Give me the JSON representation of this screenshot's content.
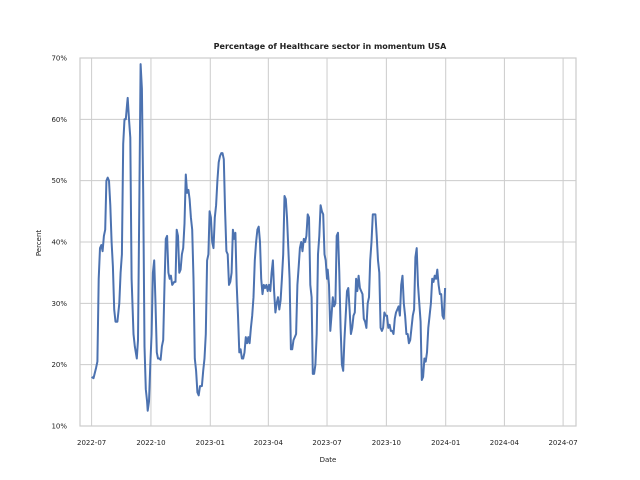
{
  "chart_data": {
    "type": "line",
    "title": "Percentage of Healthcare sector in momentum USA",
    "xlabel": "Date",
    "ylabel": "Percent",
    "grid": true,
    "ylim": [
      10,
      70
    ],
    "xlim": [
      "2022-06-13",
      "2024-07-21"
    ],
    "x_ticks": [
      "2022-07",
      "2022-10",
      "2023-01",
      "2023-04",
      "2023-07",
      "2023-10",
      "2024-01",
      "2024-04",
      "2024-07"
    ],
    "y_ticks": [
      10,
      20,
      30,
      40,
      50,
      60,
      70
    ],
    "y_tick_format": "{v}%",
    "series": [
      {
        "color": "#4c72b0",
        "points": [
          [
            "2022-07-01",
            18
          ],
          [
            "2022-07-04",
            17.8
          ],
          [
            "2022-07-08",
            19.5
          ],
          [
            "2022-07-10",
            20.5
          ],
          [
            "2022-07-12",
            34
          ],
          [
            "2022-07-14",
            39
          ],
          [
            "2022-07-16",
            39.5
          ],
          [
            "2022-07-18",
            38.5
          ],
          [
            "2022-07-20",
            41
          ],
          [
            "2022-07-22",
            42
          ],
          [
            "2022-07-24",
            50
          ],
          [
            "2022-07-26",
            50.5
          ],
          [
            "2022-07-28",
            50
          ],
          [
            "2022-07-30",
            46
          ],
          [
            "2022-08-01",
            40
          ],
          [
            "2022-08-03",
            36
          ],
          [
            "2022-08-05",
            29
          ],
          [
            "2022-08-07",
            27
          ],
          [
            "2022-08-10",
            27
          ],
          [
            "2022-08-13",
            30
          ],
          [
            "2022-08-15",
            35
          ],
          [
            "2022-08-17",
            38
          ],
          [
            "2022-08-19",
            56
          ],
          [
            "2022-08-21",
            60
          ],
          [
            "2022-08-23",
            60
          ],
          [
            "2022-08-25",
            62.5
          ],
          [
            "2022-08-26",
            63.5
          ],
          [
            "2022-08-28",
            60
          ],
          [
            "2022-08-30",
            57
          ],
          [
            "2022-09-01",
            34
          ],
          [
            "2022-09-04",
            25
          ],
          [
            "2022-09-06",
            23
          ],
          [
            "2022-09-09",
            21
          ],
          [
            "2022-09-11",
            24
          ],
          [
            "2022-09-13",
            46
          ],
          [
            "2022-09-15",
            69
          ],
          [
            "2022-09-17",
            65
          ],
          [
            "2022-09-19",
            48
          ],
          [
            "2022-09-21",
            23
          ],
          [
            "2022-09-23",
            16
          ],
          [
            "2022-09-25",
            14
          ],
          [
            "2022-09-26",
            12.5
          ],
          [
            "2022-09-28",
            14
          ],
          [
            "2022-09-30",
            20
          ],
          [
            "2022-10-02",
            25
          ],
          [
            "2022-10-04",
            35
          ],
          [
            "2022-10-06",
            37
          ],
          [
            "2022-10-08",
            30
          ],
          [
            "2022-10-10",
            22
          ],
          [
            "2022-10-12",
            21
          ],
          [
            "2022-10-14",
            21
          ],
          [
            "2022-10-16",
            20.8
          ],
          [
            "2022-10-18",
            23
          ],
          [
            "2022-10-20",
            24
          ],
          [
            "2022-10-22",
            33
          ],
          [
            "2022-10-24",
            40.5
          ],
          [
            "2022-10-26",
            41
          ],
          [
            "2022-10-28",
            35
          ],
          [
            "2022-10-30",
            34
          ],
          [
            "2022-11-01",
            34.5
          ],
          [
            "2022-11-03",
            33
          ],
          [
            "2022-11-06",
            33.5
          ],
          [
            "2022-11-08",
            33.5
          ],
          [
            "2022-11-10",
            42
          ],
          [
            "2022-11-12",
            41
          ],
          [
            "2022-11-14",
            35
          ],
          [
            "2022-11-16",
            35.5
          ],
          [
            "2022-11-18",
            38
          ],
          [
            "2022-11-20",
            39
          ],
          [
            "2022-11-22",
            43
          ],
          [
            "2022-11-24",
            51
          ],
          [
            "2022-11-26",
            48
          ],
          [
            "2022-11-28",
            48.5
          ],
          [
            "2022-11-30",
            47
          ],
          [
            "2022-12-02",
            44
          ],
          [
            "2022-12-04",
            42
          ],
          [
            "2022-12-06",
            34
          ],
          [
            "2022-12-08",
            21
          ],
          [
            "2022-12-10",
            19
          ],
          [
            "2022-12-12",
            15.5
          ],
          [
            "2022-12-14",
            15
          ],
          [
            "2022-12-16",
            16.5
          ],
          [
            "2022-12-19",
            16.5
          ],
          [
            "2022-12-21",
            19
          ],
          [
            "2022-12-23",
            21
          ],
          [
            "2022-12-25",
            25
          ],
          [
            "2022-12-27",
            37
          ],
          [
            "2022-12-29",
            38
          ],
          [
            "2022-12-31",
            45
          ],
          [
            "2023-01-02",
            44
          ],
          [
            "2023-01-04",
            40
          ],
          [
            "2023-01-06",
            39
          ],
          [
            "2023-01-08",
            44
          ],
          [
            "2023-01-10",
            46
          ],
          [
            "2023-01-12",
            50
          ],
          [
            "2023-01-14",
            53
          ],
          [
            "2023-01-16",
            54
          ],
          [
            "2023-01-18",
            54.5
          ],
          [
            "2023-01-20",
            54.5
          ],
          [
            "2023-01-22",
            53.5
          ],
          [
            "2023-01-24",
            45
          ],
          [
            "2023-01-26",
            38.5
          ],
          [
            "2023-01-28",
            38
          ],
          [
            "2023-01-30",
            33
          ],
          [
            "2023-02-01",
            33.5
          ],
          [
            "2023-02-03",
            35
          ],
          [
            "2023-02-05",
            42
          ],
          [
            "2023-02-07",
            40.5
          ],
          [
            "2023-02-09",
            41.5
          ],
          [
            "2023-02-11",
            33
          ],
          [
            "2023-02-13",
            28
          ],
          [
            "2023-02-15",
            22
          ],
          [
            "2023-02-17",
            22.5
          ],
          [
            "2023-02-19",
            21
          ],
          [
            "2023-02-21",
            21
          ],
          [
            "2023-02-23",
            22
          ],
          [
            "2023-02-25",
            24.5
          ],
          [
            "2023-02-27",
            23.5
          ],
          [
            "2023-03-01",
            24.5
          ],
          [
            "2023-03-03",
            23.5
          ],
          [
            "2023-03-05",
            26
          ],
          [
            "2023-03-07",
            28
          ],
          [
            "2023-03-09",
            31
          ],
          [
            "2023-03-11",
            37
          ],
          [
            "2023-03-13",
            40
          ],
          [
            "2023-03-15",
            42
          ],
          [
            "2023-03-17",
            42.5
          ],
          [
            "2023-03-19",
            40
          ],
          [
            "2023-03-21",
            34
          ],
          [
            "2023-03-23",
            31.5
          ],
          [
            "2023-03-25",
            33
          ],
          [
            "2023-03-27",
            32.5
          ],
          [
            "2023-03-29",
            33
          ],
          [
            "2023-03-31",
            32
          ],
          [
            "2023-04-02",
            33
          ],
          [
            "2023-04-04",
            32
          ],
          [
            "2023-04-06",
            35
          ],
          [
            "2023-04-08",
            37
          ],
          [
            "2023-04-10",
            32
          ],
          [
            "2023-04-12",
            28.5
          ],
          [
            "2023-04-14",
            30
          ],
          [
            "2023-04-16",
            31
          ],
          [
            "2023-04-18",
            29
          ],
          [
            "2023-04-20",
            30.5
          ],
          [
            "2023-04-22",
            34
          ],
          [
            "2023-04-24",
            38
          ],
          [
            "2023-04-26",
            47.5
          ],
          [
            "2023-04-28",
            47
          ],
          [
            "2023-04-30",
            44
          ],
          [
            "2023-05-02",
            39
          ],
          [
            "2023-05-04",
            34
          ],
          [
            "2023-05-06",
            22.5
          ],
          [
            "2023-05-08",
            22.5
          ],
          [
            "2023-05-10",
            24
          ],
          [
            "2023-05-12",
            24.5
          ],
          [
            "2023-05-14",
            25
          ],
          [
            "2023-05-16",
            33
          ],
          [
            "2023-05-18",
            36
          ],
          [
            "2023-05-20",
            39
          ],
          [
            "2023-05-22",
            40
          ],
          [
            "2023-05-24",
            38.5
          ],
          [
            "2023-05-26",
            40.5
          ],
          [
            "2023-05-28",
            40
          ],
          [
            "2023-05-30",
            41
          ],
          [
            "2023-06-01",
            44.5
          ],
          [
            "2023-06-03",
            44
          ],
          [
            "2023-06-05",
            33
          ],
          [
            "2023-06-07",
            31
          ],
          [
            "2023-06-09",
            18.5
          ],
          [
            "2023-06-11",
            18.5
          ],
          [
            "2023-06-13",
            20
          ],
          [
            "2023-06-15",
            25
          ],
          [
            "2023-06-17",
            38
          ],
          [
            "2023-06-19",
            41
          ],
          [
            "2023-06-21",
            46
          ],
          [
            "2023-06-23",
            45
          ],
          [
            "2023-06-25",
            44.5
          ],
          [
            "2023-06-27",
            38
          ],
          [
            "2023-06-29",
            37
          ],
          [
            "2023-07-01",
            34
          ],
          [
            "2023-07-02",
            35.5
          ],
          [
            "2023-07-04",
            33
          ],
          [
            "2023-07-06",
            25.5
          ],
          [
            "2023-07-08",
            28
          ],
          [
            "2023-07-10",
            31
          ],
          [
            "2023-07-12",
            29.5
          ],
          [
            "2023-07-14",
            30
          ],
          [
            "2023-07-16",
            41
          ],
          [
            "2023-07-18",
            41.5
          ],
          [
            "2023-07-20",
            35
          ],
          [
            "2023-07-22",
            26
          ],
          [
            "2023-07-24",
            20
          ],
          [
            "2023-07-26",
            19
          ],
          [
            "2023-07-28",
            24
          ],
          [
            "2023-07-30",
            28
          ],
          [
            "2023-08-01",
            32
          ],
          [
            "2023-08-03",
            32.5
          ],
          [
            "2023-08-05",
            29
          ],
          [
            "2023-08-07",
            25
          ],
          [
            "2023-08-09",
            26
          ],
          [
            "2023-08-11",
            28
          ],
          [
            "2023-08-13",
            28.5
          ],
          [
            "2023-08-15",
            34
          ],
          [
            "2023-08-17",
            32
          ],
          [
            "2023-08-19",
            34.5
          ],
          [
            "2023-08-21",
            32.5
          ],
          [
            "2023-08-23",
            32
          ],
          [
            "2023-08-25",
            31.5
          ],
          [
            "2023-08-27",
            27.5
          ],
          [
            "2023-08-29",
            27
          ],
          [
            "2023-08-31",
            26
          ],
          [
            "2023-09-02",
            30
          ],
          [
            "2023-09-04",
            31
          ],
          [
            "2023-09-06",
            37
          ],
          [
            "2023-09-08",
            40
          ],
          [
            "2023-09-10",
            44.5
          ],
          [
            "2023-09-12",
            44.5
          ],
          [
            "2023-09-14",
            44.5
          ],
          [
            "2023-09-16",
            41
          ],
          [
            "2023-09-18",
            37
          ],
          [
            "2023-09-20",
            35
          ],
          [
            "2023-09-22",
            26
          ],
          [
            "2023-09-24",
            25.5
          ],
          [
            "2023-09-26",
            26
          ],
          [
            "2023-09-28",
            28.5
          ],
          [
            "2023-09-30",
            28
          ],
          [
            "2023-10-02",
            28
          ],
          [
            "2023-10-04",
            26
          ],
          [
            "2023-10-06",
            26.5
          ],
          [
            "2023-10-08",
            25.5
          ],
          [
            "2023-10-10",
            25.5
          ],
          [
            "2023-10-12",
            25
          ],
          [
            "2023-10-14",
            27.5
          ],
          [
            "2023-10-16",
            28.5
          ],
          [
            "2023-10-18",
            29
          ],
          [
            "2023-10-20",
            29.5
          ],
          [
            "2023-10-22",
            28
          ],
          [
            "2023-10-24",
            33
          ],
          [
            "2023-10-26",
            34.5
          ],
          [
            "2023-10-28",
            30
          ],
          [
            "2023-10-30",
            28
          ],
          [
            "2023-11-01",
            25
          ],
          [
            "2023-11-03",
            25
          ],
          [
            "2023-11-05",
            23.5
          ],
          [
            "2023-11-07",
            24
          ],
          [
            "2023-11-09",
            26
          ],
          [
            "2023-11-11",
            28
          ],
          [
            "2023-11-13",
            29
          ],
          [
            "2023-11-15",
            37.5
          ],
          [
            "2023-11-17",
            39
          ],
          [
            "2023-11-19",
            33
          ],
          [
            "2023-11-21",
            30
          ],
          [
            "2023-11-23",
            27
          ],
          [
            "2023-11-25",
            17.5
          ],
          [
            "2023-11-27",
            18
          ],
          [
            "2023-11-29",
            21
          ],
          [
            "2023-12-01",
            20.5
          ],
          [
            "2023-12-03",
            22
          ],
          [
            "2023-12-05",
            26
          ],
          [
            "2023-12-07",
            28
          ],
          [
            "2023-12-09",
            30
          ],
          [
            "2023-12-11",
            34
          ],
          [
            "2023-12-13",
            33.5
          ],
          [
            "2023-12-15",
            34.5
          ],
          [
            "2023-12-17",
            34
          ],
          [
            "2023-12-19",
            35.5
          ],
          [
            "2023-12-21",
            33
          ],
          [
            "2023-12-23",
            31.5
          ],
          [
            "2023-12-25",
            31.5
          ],
          [
            "2023-12-27",
            28
          ],
          [
            "2023-12-29",
            27.5
          ],
          [
            "2023-12-31",
            32.5
          ]
        ]
      }
    ]
  }
}
